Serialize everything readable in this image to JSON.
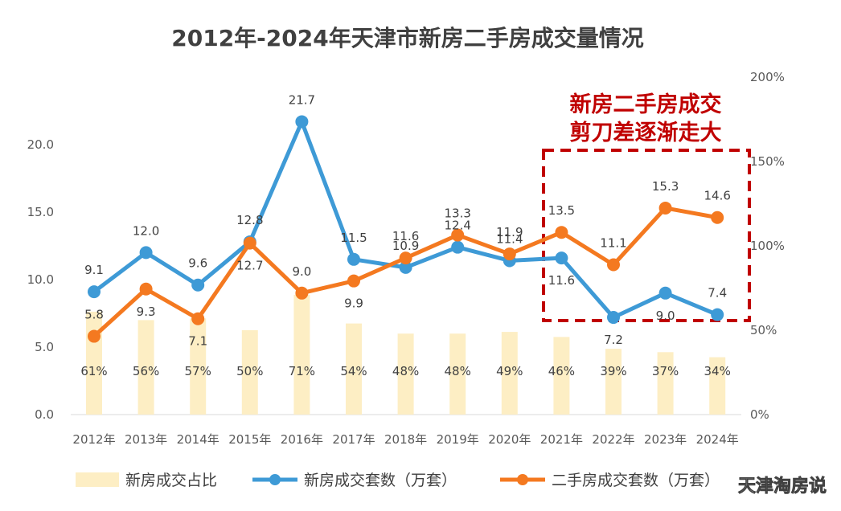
{
  "chart_data": {
    "type": "bar+line",
    "title": "2012年-2024年天津市新房二手房成交量情况",
    "categories": [
      "2012年",
      "2013年",
      "2014年",
      "2015年",
      "2016年",
      "2017年",
      "2018年",
      "2019年",
      "2020年",
      "2021年",
      "2022年",
      "2023年",
      "2024年"
    ],
    "left_axis": {
      "ylim": [
        0,
        25
      ],
      "ticks": [
        "0.0",
        "5.0",
        "10.0",
        "15.0",
        "20.0"
      ]
    },
    "right_axis": {
      "ylim": [
        0,
        2.0
      ],
      "ticks": [
        "0%",
        "50%",
        "100%",
        "150%",
        "200%"
      ]
    },
    "series": [
      {
        "name": "新房成交占比",
        "type": "bar",
        "axis": "right",
        "color": "#fdeec4",
        "values": [
          0.61,
          0.56,
          0.57,
          0.5,
          0.71,
          0.54,
          0.48,
          0.48,
          0.49,
          0.46,
          0.39,
          0.37,
          0.34
        ],
        "labels": [
          "61%",
          "56%",
          "57%",
          "50%",
          "71%",
          "54%",
          "48%",
          "48%",
          "49%",
          "46%",
          "39%",
          "37%",
          "34%"
        ]
      },
      {
        "name": "新房成交套数（万套）",
        "type": "line",
        "axis": "left",
        "color": "#3e9ad6",
        "values": [
          9.1,
          12.0,
          9.6,
          12.8,
          21.7,
          11.5,
          10.9,
          12.4,
          11.4,
          11.6,
          7.2,
          9.0,
          7.4
        ],
        "labels": [
          "9.1",
          "12.0",
          "9.6",
          "12.8",
          "21.7",
          "11.5",
          "10.9",
          "12.4",
          "11.4",
          "11.6",
          "7.2",
          "9.0",
          "7.4"
        ]
      },
      {
        "name": "二手房成交套数（万套）",
        "type": "line",
        "axis": "left",
        "color": "#f47920",
        "values": [
          5.8,
          9.3,
          7.1,
          12.7,
          9.0,
          9.9,
          11.6,
          13.3,
          11.9,
          13.5,
          11.1,
          15.3,
          14.6
        ],
        "labels": [
          "5.8",
          "9.3",
          "7.1",
          "12.7",
          "9.0",
          "9.9",
          "11.6",
          "13.3",
          "11.9",
          "13.5",
          "11.1",
          "15.3",
          "14.6"
        ]
      }
    ],
    "annotation": {
      "line1": "新房二手房成交",
      "line2": "剪刀差逐渐走大",
      "color": "#c00000"
    },
    "legend_position": "bottom",
    "grid": false
  },
  "watermark": {
    "text": "天津淘房说"
  }
}
